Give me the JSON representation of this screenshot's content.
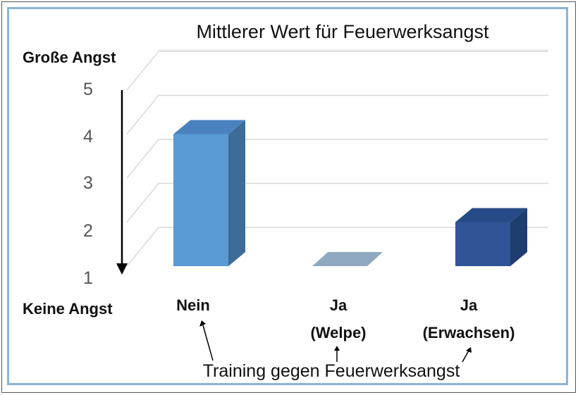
{
  "chart_data": {
    "type": "bar",
    "title": "Mittlerer Wert für Feuerwerksangst",
    "xlabel": "Training gegen Feuerwerksangst",
    "ylabel_top": "Große Angst",
    "ylabel_bottom": "Keine Angst",
    "ylim": [
      1,
      5
    ],
    "yticks": [
      1,
      2,
      3,
      4,
      5
    ],
    "categories": [
      {
        "line1": "Nein",
        "line2": ""
      },
      {
        "line1": "Ja",
        "line2": "(Welpe)"
      },
      {
        "line1": "Ja",
        "line2": "(Erwachsen)"
      }
    ],
    "values": [
      4.0,
      1.0,
      2.0
    ],
    "colors": {
      "bars": [
        "#5b9bd5",
        "#8faac0",
        "#2f5597"
      ],
      "bar_tops": [
        "#4a82c0",
        "#a9bdd0",
        "#264a86"
      ],
      "bar_sides": [
        "#3d6c98",
        "#7d95ab",
        "#1f3d6e"
      ],
      "grid": "#d9d9d9",
      "frame": "#8ab4d6"
    },
    "grid": true,
    "style": "3d-column"
  }
}
